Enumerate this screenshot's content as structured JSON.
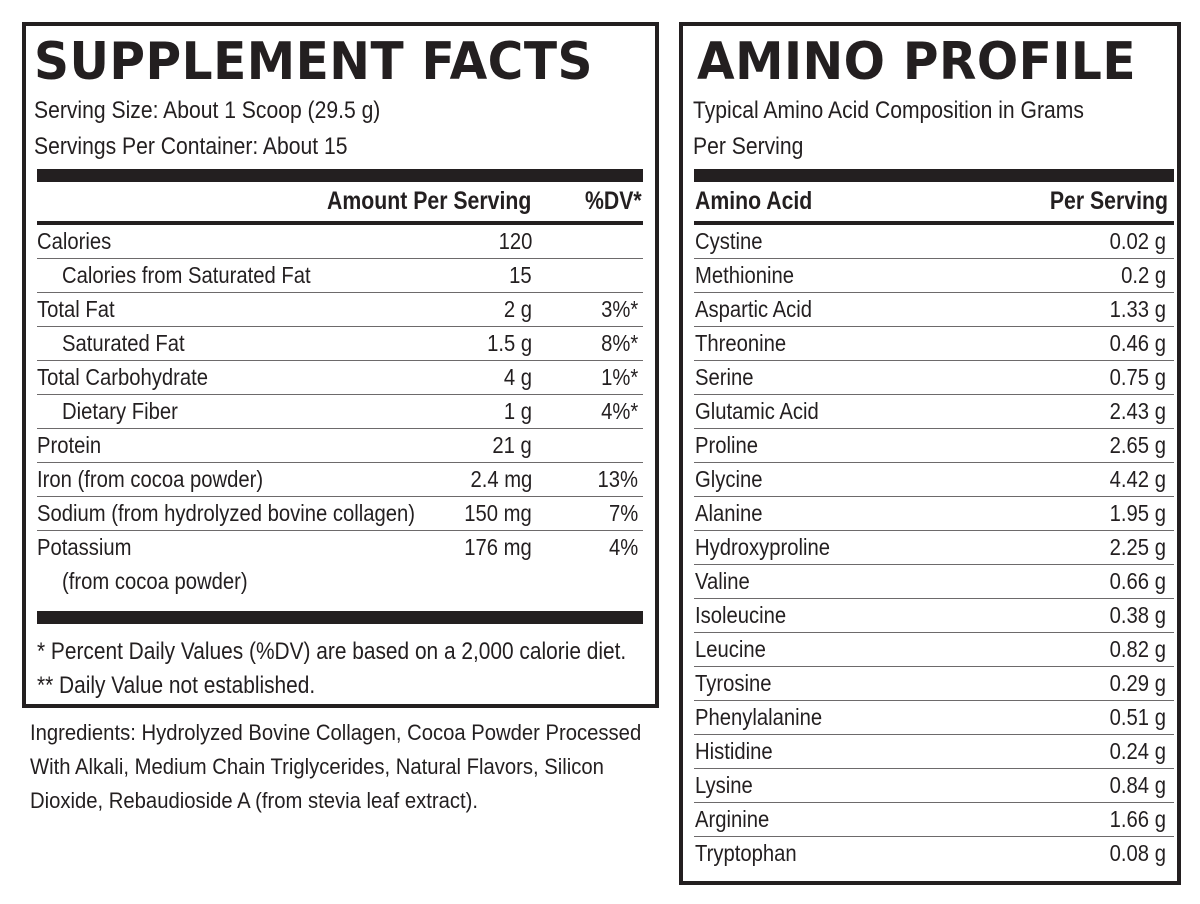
{
  "supplement_facts": {
    "title": "SUPPLEMENT FACTS",
    "serving_size": "Serving Size: About 1 Scoop (29.5 g)",
    "servings_per_container": "Servings Per Container: About 15",
    "columns": {
      "amount": "Amount Per Serving",
      "dv": "%DV*"
    },
    "rows": [
      {
        "name": "Calories",
        "amount": "120",
        "dv": "",
        "indent": false
      },
      {
        "name": "Calories from Saturated Fat",
        "amount": "15",
        "dv": "",
        "indent": true
      },
      {
        "name": "Total Fat",
        "amount": "2 g",
        "dv": "3%*",
        "indent": false
      },
      {
        "name": "Saturated Fat",
        "amount": "1.5 g",
        "dv": "8%*",
        "indent": true
      },
      {
        "name": "Total Carbohydrate",
        "amount": "4 g",
        "dv": "1%*",
        "indent": false
      },
      {
        "name": "Dietary Fiber",
        "amount": "1 g",
        "dv": "4%*",
        "indent": true
      },
      {
        "name": "Protein",
        "amount": "21 g",
        "dv": "",
        "indent": false
      },
      {
        "name": "Iron (from cocoa powder)",
        "amount": "2.4 mg",
        "dv": "13%",
        "indent": false
      },
      {
        "name": "Sodium (from hydrolyzed bovine collagen)",
        "amount": "150 mg",
        "dv": "7%",
        "indent": false
      },
      {
        "name": "Potassium",
        "amount": "176 mg",
        "dv": "4%",
        "indent": false,
        "subline": "(from cocoa powder)"
      }
    ],
    "footnote_1": "* Percent Daily Values (%DV) are based on a 2,000 calorie diet.",
    "footnote_2": "** Daily Value not established."
  },
  "ingredients": "Ingredients: Hydrolyzed Bovine Collagen, Cocoa Powder Processed With Alkali, Medium Chain Triglycerides, Natural Flavors, Silicon Dioxide, Rebaudioside A (from stevia leaf extract).",
  "amino_profile": {
    "title": "AMINO PROFILE",
    "subtitle_line1": "Typical Amino Acid Composition in Grams",
    "subtitle_line2": "Per Serving",
    "columns": {
      "name": "Amino Acid",
      "amount": "Per Serving"
    },
    "rows": [
      {
        "name": "Cystine",
        "amount": "0.02 g"
      },
      {
        "name": "Methionine",
        "amount": "0.2 g"
      },
      {
        "name": "Aspartic Acid",
        "amount": "1.33 g"
      },
      {
        "name": "Threonine",
        "amount": "0.46 g"
      },
      {
        "name": "Serine",
        "amount": "0.75 g"
      },
      {
        "name": "Glutamic Acid",
        "amount": "2.43 g"
      },
      {
        "name": "Proline",
        "amount": "2.65 g"
      },
      {
        "name": "Glycine",
        "amount": "4.42 g"
      },
      {
        "name": "Alanine",
        "amount": "1.95 g"
      },
      {
        "name": "Hydroxyproline",
        "amount": "2.25 g"
      },
      {
        "name": "Valine",
        "amount": "0.66 g"
      },
      {
        "name": "Isoleucine",
        "amount": "0.38 g"
      },
      {
        "name": "Leucine",
        "amount": "0.82 g"
      },
      {
        "name": "Tyrosine",
        "amount": "0.29 g"
      },
      {
        "name": "Phenylalanine",
        "amount": "0.51 g"
      },
      {
        "name": "Histidine",
        "amount": "0.24 g"
      },
      {
        "name": "Lysine",
        "amount": "0.84 g"
      },
      {
        "name": "Arginine",
        "amount": "1.66 g"
      },
      {
        "name": "Tryptophan",
        "amount": "0.08 g"
      }
    ]
  }
}
